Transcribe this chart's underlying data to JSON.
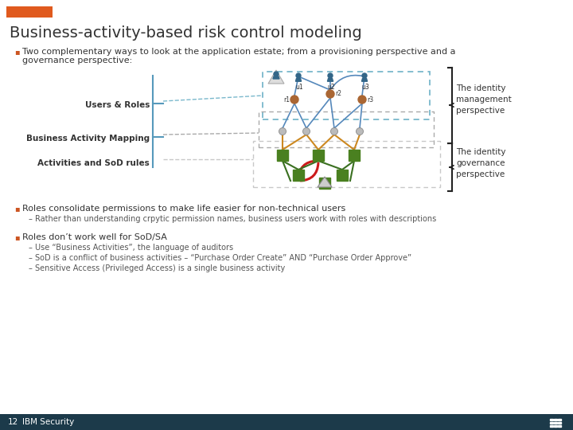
{
  "title": "Business-activity-based risk control modeling",
  "title_fontsize": 14,
  "title_color": "#333333",
  "bg_color": "#ffffff",
  "orange_bar_color": "#e05a1e",
  "footer_bg": "#1c3a4a",
  "footer_text": "IBM Security",
  "footer_num": "12",
  "bullet1_a": "Two complementary ways to look at the application estate; from a provisioning perspective and a",
  "bullet1_b": "governance perspective:",
  "bullet2_main": "Roles consolidate permissions to make life easier for non-technical users",
  "bullet2_sub": "Rather than understanding crpytic permission names, business users work with roles with descriptions",
  "bullet3_main": "Roles don’t work well for SoD/SA",
  "bullet3_subs": [
    "Use “Business Activities”, the language of auditors",
    "SoD is a conflict of business activities – “Purchase Order Create” AND “Purchase Order Approve”",
    "Sensitive Access (Privileged Access) is a single business activity"
  ],
  "label_users_roles": "Users & Roles",
  "label_bam": "Business Activity Mapping",
  "label_activities": "Activities and SoD rules",
  "label_idm": "The identity\nmanagement\nperspective",
  "label_idg": "The identity\ngovernance\nperspective",
  "user_labels": [
    "u1",
    "u2",
    "u3"
  ],
  "role_labels": [
    "r1",
    "r2",
    "r3"
  ],
  "dashed_box_blue": "#7ab8cc",
  "dashed_box_grey": "#aaaaaa",
  "dashed_box_lgrey": "#c8c8c8",
  "line_blue": "#5588bb",
  "line_orange": "#cc8820",
  "line_green": "#3a7020",
  "line_red": "#cc1a1a",
  "node_brown": "#aa6633",
  "node_green": "#4a8020",
  "node_grey": "#999999",
  "user_color": "#336688",
  "bullet_color": "#cc5522"
}
